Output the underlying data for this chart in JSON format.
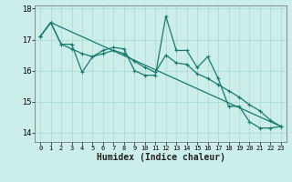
{
  "title": "",
  "xlabel": "Humidex (Indice chaleur)",
  "background_color": "#cceee8",
  "grid_color": "#aad8d2",
  "line_color": "#1a7a6e",
  "xlim": [
    -0.5,
    23.5
  ],
  "ylim": [
    13.7,
    18.1
  ],
  "yticks": [
    14,
    15,
    16,
    17,
    18
  ],
  "xticks": [
    0,
    1,
    2,
    3,
    4,
    5,
    6,
    7,
    8,
    9,
    10,
    11,
    12,
    13,
    14,
    15,
    16,
    17,
    18,
    19,
    20,
    21,
    22,
    23
  ],
  "line1_x": [
    0,
    1,
    2,
    3,
    4,
    5,
    6,
    7,
    8,
    9,
    10,
    11,
    12,
    13,
    14,
    15,
    16,
    17,
    18,
    19,
    20,
    21,
    22,
    23
  ],
  "line1_y": [
    17.1,
    17.55,
    16.85,
    16.85,
    15.95,
    16.45,
    16.65,
    16.75,
    16.7,
    16.0,
    15.85,
    15.85,
    17.75,
    16.65,
    16.65,
    16.1,
    16.45,
    15.75,
    14.85,
    14.85,
    14.35,
    14.15,
    14.15,
    14.2
  ],
  "line2_x": [
    0,
    1,
    2,
    3,
    4,
    5,
    6,
    7,
    8,
    9,
    10,
    11,
    12,
    13,
    14,
    15,
    16,
    17,
    18,
    19,
    20,
    21,
    22,
    23
  ],
  "line2_y": [
    17.1,
    17.55,
    16.85,
    16.7,
    16.55,
    16.45,
    16.55,
    16.65,
    16.55,
    16.3,
    16.1,
    15.95,
    16.5,
    16.25,
    16.2,
    15.9,
    15.75,
    15.55,
    15.35,
    15.15,
    14.9,
    14.7,
    14.4,
    14.2
  ],
  "line3_x": [
    0,
    1,
    23
  ],
  "line3_y": [
    17.1,
    17.55,
    14.2
  ]
}
